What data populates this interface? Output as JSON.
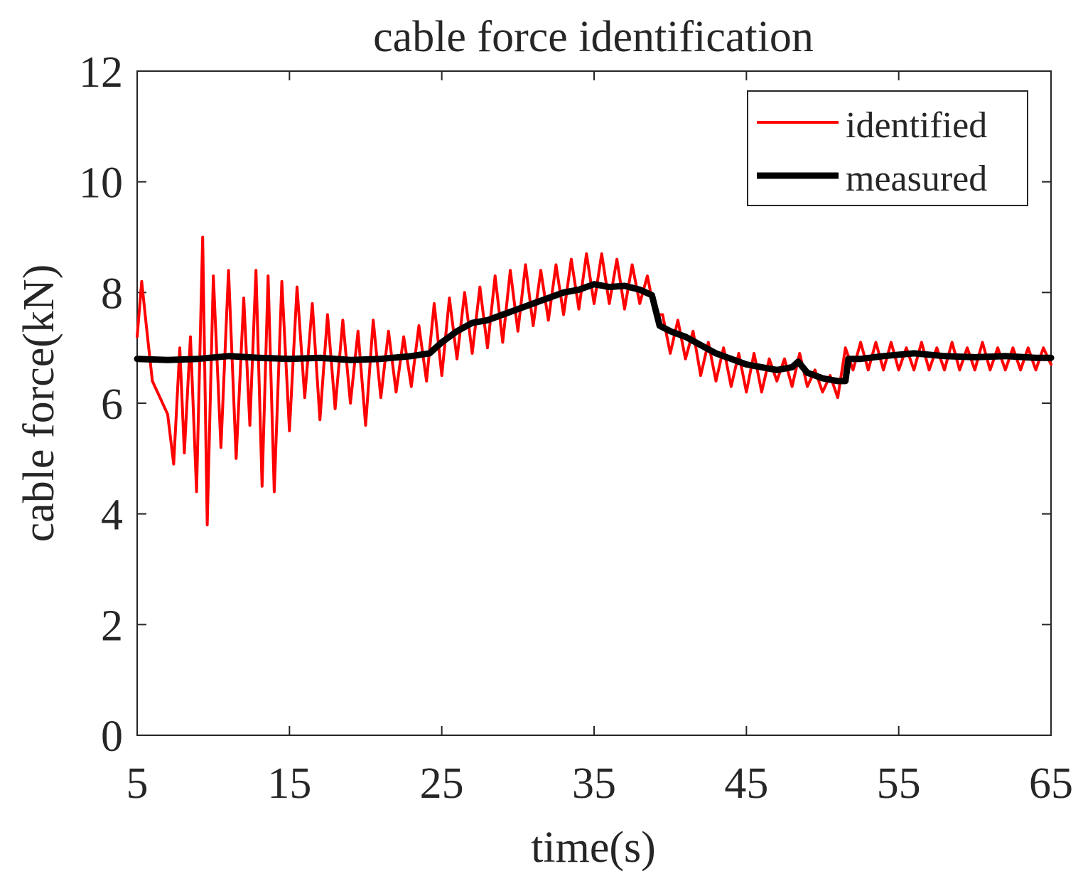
{
  "chart_data": {
    "type": "line",
    "title": "cable force identification",
    "xlabel": "time(s)",
    "ylabel": "cable force(kN)",
    "xlim": [
      5,
      65
    ],
    "ylim": [
      0,
      12
    ],
    "xticks": [
      5,
      15,
      25,
      35,
      45,
      55,
      65
    ],
    "xtick_labels": [
      "5",
      "15",
      "25",
      "35",
      "45",
      "55",
      "65"
    ],
    "yticks": [
      0,
      2,
      4,
      6,
      8,
      10,
      12
    ],
    "ytick_labels": [
      "0",
      "2",
      "4",
      "6",
      "8",
      "10",
      "12"
    ],
    "grid": false,
    "legend_position": "top-right",
    "series": [
      {
        "name": "identified",
        "color": "#ff0000",
        "x": [
          5.0,
          5.3,
          5.6,
          6.0,
          6.5,
          7.0,
          7.4,
          7.8,
          8.1,
          8.5,
          8.9,
          9.3,
          9.6,
          10.0,
          10.5,
          11.0,
          11.5,
          12.0,
          12.4,
          12.8,
          13.2,
          13.6,
          14.0,
          14.5,
          15.0,
          15.5,
          16.0,
          16.5,
          17.0,
          17.5,
          18.0,
          18.5,
          19.0,
          19.5,
          20.0,
          20.5,
          21.0,
          21.5,
          22.0,
          22.5,
          23.0,
          23.5,
          24.0,
          24.5,
          25.0,
          25.5,
          26.0,
          26.5,
          27.0,
          27.5,
          28.0,
          28.5,
          29.0,
          29.5,
          30.0,
          30.5,
          31.0,
          31.5,
          32.0,
          32.5,
          33.0,
          33.5,
          34.0,
          34.5,
          35.0,
          35.5,
          36.0,
          36.5,
          37.0,
          37.5,
          38.0,
          38.5,
          39.0,
          39.5,
          40.0,
          40.5,
          41.0,
          41.5,
          42.0,
          42.5,
          43.0,
          43.5,
          44.0,
          44.5,
          45.0,
          45.5,
          46.0,
          46.5,
          47.0,
          47.5,
          48.0,
          48.5,
          49.0,
          49.5,
          50.0,
          50.5,
          51.0,
          51.5,
          52.0,
          52.5,
          53.0,
          53.5,
          54.0,
          54.5,
          55.0,
          55.5,
          56.0,
          56.5,
          57.0,
          57.5,
          58.0,
          58.5,
          59.0,
          59.5,
          60.0,
          60.5,
          61.0,
          61.5,
          62.0,
          62.5,
          63.0,
          63.5,
          64.0,
          64.5,
          65.0
        ],
        "y": [
          7.2,
          8.2,
          7.4,
          6.4,
          6.1,
          5.8,
          4.9,
          7.0,
          5.1,
          7.2,
          4.4,
          9.0,
          3.8,
          8.3,
          5.2,
          8.4,
          5.0,
          7.9,
          5.6,
          8.4,
          4.5,
          8.3,
          4.4,
          8.2,
          5.5,
          8.1,
          6.1,
          7.8,
          5.7,
          7.6,
          5.9,
          7.5,
          6.0,
          7.3,
          5.6,
          7.5,
          6.1,
          7.3,
          6.2,
          7.2,
          6.3,
          7.4,
          6.4,
          7.8,
          6.5,
          7.9,
          6.8,
          8.0,
          6.9,
          8.1,
          7.0,
          8.3,
          7.1,
          8.4,
          7.3,
          8.5,
          7.4,
          8.4,
          7.5,
          8.5,
          7.6,
          8.6,
          7.7,
          8.7,
          7.8,
          8.7,
          7.8,
          8.6,
          7.7,
          8.5,
          7.8,
          8.3,
          7.6,
          7.6,
          6.9,
          7.5,
          6.8,
          7.3,
          6.5,
          7.1,
          6.4,
          7.0,
          6.3,
          6.9,
          6.2,
          6.9,
          6.2,
          6.8,
          6.4,
          6.8,
          6.3,
          6.9,
          6.3,
          6.6,
          6.2,
          6.5,
          6.1,
          7.0,
          6.6,
          7.1,
          6.6,
          7.1,
          6.6,
          7.1,
          6.6,
          7.0,
          6.6,
          7.1,
          6.6,
          7.0,
          6.6,
          7.1,
          6.6,
          7.0,
          6.6,
          7.1,
          6.6,
          7.0,
          6.6,
          7.0,
          6.6,
          7.0,
          6.6,
          7.0,
          6.7
        ]
      },
      {
        "name": "measured",
        "color": "#000000",
        "x": [
          5.0,
          7.0,
          9.0,
          11.0,
          13.0,
          15.0,
          17.0,
          19.0,
          21.0,
          23.0,
          24.2,
          25.0,
          26.0,
          27.0,
          28.0,
          29.0,
          30.0,
          31.0,
          32.0,
          33.0,
          34.0,
          35.0,
          36.0,
          37.0,
          38.0,
          38.8,
          39.3,
          40.0,
          41.0,
          42.0,
          43.0,
          44.0,
          45.0,
          46.0,
          47.0,
          48.0,
          48.4,
          49.0,
          50.0,
          51.0,
          51.5,
          51.7,
          52.5,
          54.0,
          56.0,
          58.0,
          60.0,
          62.0,
          64.0,
          65.0
        ],
        "y": [
          6.8,
          6.78,
          6.8,
          6.85,
          6.82,
          6.8,
          6.82,
          6.78,
          6.8,
          6.85,
          6.9,
          7.1,
          7.3,
          7.45,
          7.5,
          7.6,
          7.7,
          7.8,
          7.9,
          8.0,
          8.05,
          8.15,
          8.1,
          8.12,
          8.05,
          7.95,
          7.4,
          7.3,
          7.2,
          7.05,
          6.9,
          6.8,
          6.7,
          6.65,
          6.6,
          6.65,
          6.75,
          6.55,
          6.45,
          6.4,
          6.4,
          6.8,
          6.8,
          6.85,
          6.9,
          6.85,
          6.83,
          6.85,
          6.82,
          6.82
        ]
      }
    ]
  }
}
